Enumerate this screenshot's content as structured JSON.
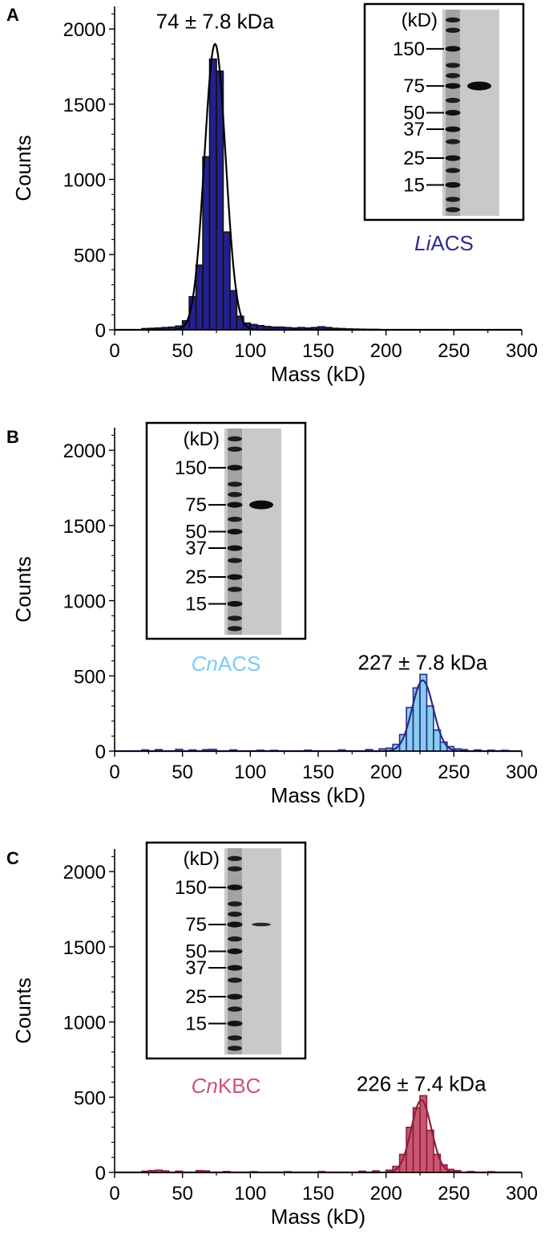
{
  "figure": {
    "background": "#ffffff"
  },
  "chart_data": [
    {
      "type": "bar",
      "panel_label": "A",
      "xlabel": "Mass (kD)",
      "ylabel": "Counts",
      "xlim": [
        0,
        300
      ],
      "ylim": [
        0,
        2150
      ],
      "xticks": [
        0,
        50,
        100,
        150,
        200,
        250,
        300
      ],
      "yticks": [
        0,
        500,
        1000,
        1500,
        2000
      ],
      "bin_width": 5,
      "fill_color": "#23208f",
      "edge_color": "#111111",
      "fit_color": "#000000",
      "annotation": {
        "text": "74 ± 7.8 kDa",
        "x": 74,
        "y": 2050
      },
      "fit": {
        "mean": 74,
        "sigma": 7.8,
        "amplitude": 1900
      },
      "bins": [
        {
          "x": 22.5,
          "y": 8
        },
        {
          "x": 27.5,
          "y": 10
        },
        {
          "x": 32.5,
          "y": 12
        },
        {
          "x": 37.5,
          "y": 15
        },
        {
          "x": 42.5,
          "y": 18
        },
        {
          "x": 47.5,
          "y": 25
        },
        {
          "x": 52.5,
          "y": 60
        },
        {
          "x": 57.5,
          "y": 220
        },
        {
          "x": 62.5,
          "y": 430
        },
        {
          "x": 67.5,
          "y": 1150
        },
        {
          "x": 72.5,
          "y": 1800
        },
        {
          "x": 77.5,
          "y": 1720
        },
        {
          "x": 82.5,
          "y": 650
        },
        {
          "x": 87.5,
          "y": 260
        },
        {
          "x": 92.5,
          "y": 90
        },
        {
          "x": 97.5,
          "y": 45
        },
        {
          "x": 102.5,
          "y": 35
        },
        {
          "x": 107.5,
          "y": 28
        },
        {
          "x": 112.5,
          "y": 22
        },
        {
          "x": 117.5,
          "y": 18
        },
        {
          "x": 122.5,
          "y": 18
        },
        {
          "x": 127.5,
          "y": 15
        },
        {
          "x": 132.5,
          "y": 12
        },
        {
          "x": 137.5,
          "y": 15
        },
        {
          "x": 142.5,
          "y": 12
        },
        {
          "x": 147.5,
          "y": 15
        },
        {
          "x": 152.5,
          "y": 20
        },
        {
          "x": 157.5,
          "y": 15
        },
        {
          "x": 162.5,
          "y": 10
        },
        {
          "x": 167.5,
          "y": 8
        },
        {
          "x": 172.5,
          "y": 6
        },
        {
          "x": 177.5,
          "y": 5
        },
        {
          "x": 182.5,
          "y": 4
        },
        {
          "x": 187.5,
          "y": 3
        },
        {
          "x": 192.5,
          "y": 3
        }
      ],
      "inset": {
        "unit_label": "(kD)",
        "ladder_marks": [
          "150",
          "75",
          "50",
          "37",
          "25",
          "15"
        ],
        "lane_label": "LiACS",
        "lane_label_prefix": "Li",
        "lane_label_suffix": "ACS",
        "lane_label_color": "#2e2a8c",
        "box_position": "top-right",
        "band_at_marker": "75",
        "band_strength": "strong"
      }
    },
    {
      "type": "bar",
      "panel_label": "B",
      "xlabel": "Mass (kD)",
      "ylabel": "Counts",
      "xlim": [
        0,
        300
      ],
      "ylim": [
        0,
        2150
      ],
      "xticks": [
        0,
        50,
        100,
        150,
        200,
        250,
        300
      ],
      "yticks": [
        0,
        500,
        1000,
        1500,
        2000
      ],
      "bin_width": 5,
      "fill_color": "#87cdec",
      "edge_color": "#2a2b8c",
      "fit_color": "#2a2b8c",
      "annotation": {
        "text": "227 ± 7.8 kDa",
        "x": 227,
        "y": 590
      },
      "fit": {
        "mean": 227,
        "sigma": 7.8,
        "amplitude": 470
      },
      "bins": [
        {
          "x": 22.5,
          "y": 8
        },
        {
          "x": 32.5,
          "y": 10
        },
        {
          "x": 47.5,
          "y": 12
        },
        {
          "x": 57.5,
          "y": 8
        },
        {
          "x": 67.5,
          "y": 10
        },
        {
          "x": 72.5,
          "y": 12
        },
        {
          "x": 87.5,
          "y": 8
        },
        {
          "x": 107.5,
          "y": 6
        },
        {
          "x": 117.5,
          "y": 5
        },
        {
          "x": 142.5,
          "y": 6
        },
        {
          "x": 167.5,
          "y": 8
        },
        {
          "x": 187.5,
          "y": 10
        },
        {
          "x": 197.5,
          "y": 15
        },
        {
          "x": 202.5,
          "y": 20
        },
        {
          "x": 207.5,
          "y": 45
        },
        {
          "x": 212.5,
          "y": 110
        },
        {
          "x": 217.5,
          "y": 290
        },
        {
          "x": 222.5,
          "y": 420
        },
        {
          "x": 227.5,
          "y": 510
        },
        {
          "x": 232.5,
          "y": 300
        },
        {
          "x": 237.5,
          "y": 140
        },
        {
          "x": 242.5,
          "y": 60
        },
        {
          "x": 247.5,
          "y": 30
        },
        {
          "x": 252.5,
          "y": 15
        },
        {
          "x": 257.5,
          "y": 10
        },
        {
          "x": 267.5,
          "y": 8
        },
        {
          "x": 277.5,
          "y": 6
        },
        {
          "x": 287.5,
          "y": 5
        }
      ],
      "inset": {
        "unit_label": "(kD)",
        "ladder_marks": [
          "150",
          "75",
          "50",
          "37",
          "25",
          "15"
        ],
        "lane_label": "CnACS",
        "lane_label_prefix": "Cn",
        "lane_label_suffix": "ACS",
        "lane_label_color": "#7ccbf0",
        "box_position": "top-left",
        "band_at_marker": "75",
        "band_strength": "strong"
      }
    },
    {
      "type": "bar",
      "panel_label": "C",
      "xlabel": "Mass (kD)",
      "ylabel": "Counts",
      "xlim": [
        0,
        300
      ],
      "ylim": [
        0,
        2150
      ],
      "xticks": [
        0,
        50,
        100,
        150,
        200,
        250,
        300
      ],
      "yticks": [
        0,
        500,
        1000,
        1500,
        2000
      ],
      "bin_width": 5,
      "fill_color": "#c9566f",
      "edge_color": "#8a1f3c",
      "fit_color": "#8a1f3c",
      "annotation": {
        "text": "226 ± 7.4 kDa",
        "x": 226,
        "y": 590
      },
      "fit": {
        "mean": 226,
        "sigma": 7.4,
        "amplitude": 480
      },
      "bins": [
        {
          "x": 22.5,
          "y": 8
        },
        {
          "x": 27.5,
          "y": 12
        },
        {
          "x": 32.5,
          "y": 15
        },
        {
          "x": 37.5,
          "y": 10
        },
        {
          "x": 47.5,
          "y": 8
        },
        {
          "x": 62.5,
          "y": 12
        },
        {
          "x": 67.5,
          "y": 10
        },
        {
          "x": 82.5,
          "y": 6
        },
        {
          "x": 102.5,
          "y": 5
        },
        {
          "x": 127.5,
          "y": 5
        },
        {
          "x": 152.5,
          "y": 6
        },
        {
          "x": 182.5,
          "y": 8
        },
        {
          "x": 192.5,
          "y": 10
        },
        {
          "x": 202.5,
          "y": 15
        },
        {
          "x": 207.5,
          "y": 40
        },
        {
          "x": 212.5,
          "y": 120
        },
        {
          "x": 217.5,
          "y": 300
        },
        {
          "x": 222.5,
          "y": 430
        },
        {
          "x": 227.5,
          "y": 510
        },
        {
          "x": 232.5,
          "y": 280
        },
        {
          "x": 237.5,
          "y": 120
        },
        {
          "x": 242.5,
          "y": 50
        },
        {
          "x": 247.5,
          "y": 20
        },
        {
          "x": 252.5,
          "y": 12
        },
        {
          "x": 262.5,
          "y": 6
        },
        {
          "x": 277.5,
          "y": 5
        }
      ],
      "inset": {
        "unit_label": "(kD)",
        "ladder_marks": [
          "150",
          "75",
          "50",
          "37",
          "25",
          "15"
        ],
        "lane_label": "CnKBC",
        "lane_label_prefix": "Cn",
        "lane_label_suffix": "KBC",
        "lane_label_color": "#c9566f",
        "box_position": "top-left",
        "band_at_marker": "75",
        "band_strength": "weak"
      }
    }
  ]
}
